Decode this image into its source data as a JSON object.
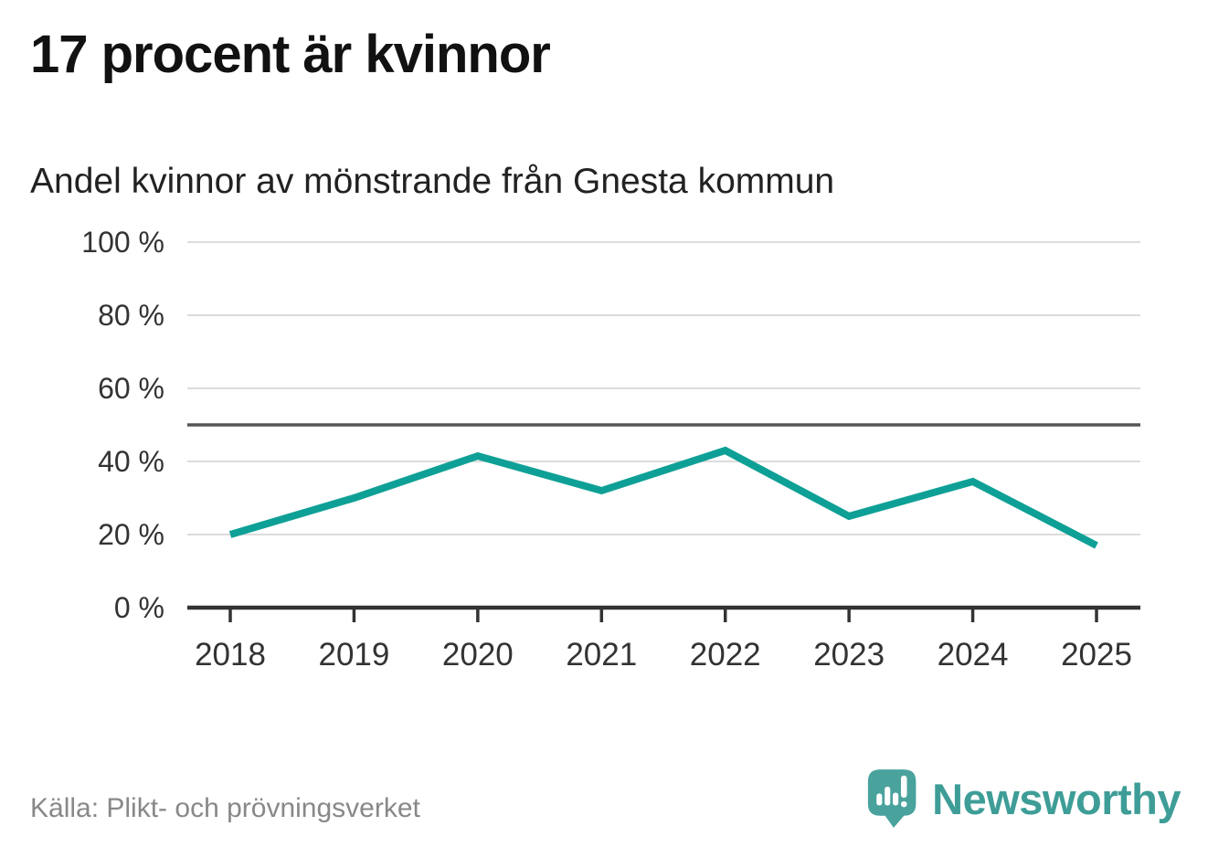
{
  "header": {
    "title": "17 procent är kvinnor",
    "subtitle": "Andel kvinnor av mönstrande från Gnesta kommun"
  },
  "chart_data": {
    "type": "line",
    "title": "17 procent är kvinnor",
    "subtitle": "Andel kvinnor av mönstrande från Gnesta kommun",
    "x": [
      "2018",
      "2019",
      "2020",
      "2021",
      "2022",
      "2023",
      "2024",
      "2025"
    ],
    "series": [
      {
        "name": "Andel kvinnor av mönstrande",
        "values": [
          20,
          30,
          41.5,
          32,
          43,
          25,
          34.5,
          17
        ]
      }
    ],
    "ylim": [
      0,
      100
    ],
    "yticks": [
      0,
      20,
      40,
      60,
      80,
      100
    ],
    "ytick_format": "{v} %",
    "reference_line": 50,
    "grid": true,
    "legend_position": "none",
    "line_color": "#0ea096"
  },
  "footer": {
    "source": "Källa: Plikt- och prövningsverket",
    "brand": "Newsworthy"
  },
  "icons": {
    "logo": "newsworthy-logo"
  },
  "colors": {
    "accent": "#0ea096",
    "grid": "#dcdcdc",
    "reference": "#555555",
    "axis": "#333333",
    "tick_text": "#333333",
    "muted_text": "#888888",
    "brand_teal": "#3e9d97",
    "logo_bubble": "#4aa29d"
  }
}
